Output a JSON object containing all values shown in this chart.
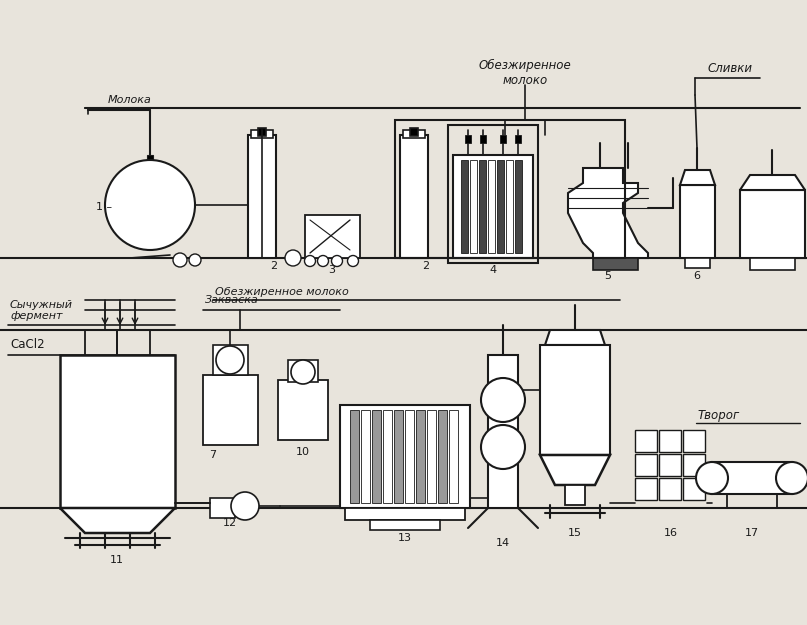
{
  "bg_color": "#e8e4dc",
  "line_color": "#1a1a1a",
  "text_color": "#1a1a1a",
  "figsize": [
    8.07,
    6.25
  ],
  "dpi": 100,
  "labels": {
    "moloko": "Молока",
    "obezh_top": "Обезжиренное\nмолоко",
    "slivki": "Сливки",
    "sychuzh": "Сычужный\nфермент",
    "zakvaска": "Закваска",
    "cacl2": "CaCl2",
    "obezh_mid": "Обезжиренное молоко",
    "tvorog": "Творог"
  }
}
